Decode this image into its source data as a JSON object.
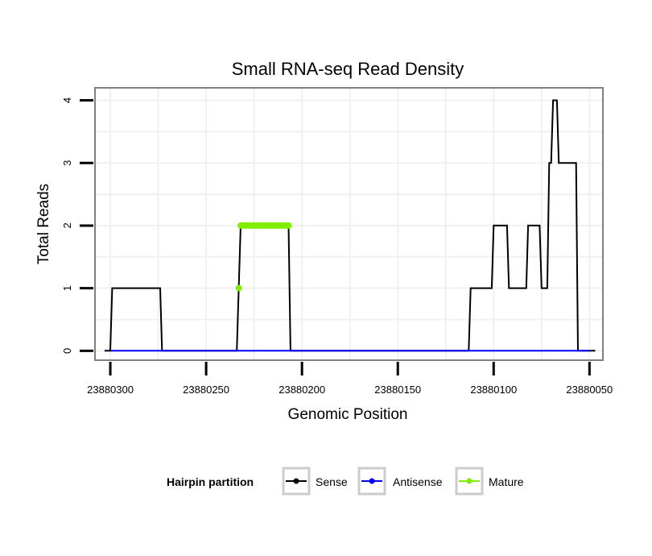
{
  "chart_data": {
    "type": "line",
    "title": "Small RNA-seq Read Density",
    "xlabel": "Genomic Position",
    "ylabel": "Total Reads",
    "xlim": [
      23880308,
      23880043
    ],
    "x_reversed": true,
    "ylim": [
      -0.15,
      4.2
    ],
    "x_ticks": [
      23880300,
      23880250,
      23880200,
      23880150,
      23880100,
      23880050
    ],
    "x_tick_labels": [
      "23880300",
      "23880250",
      "23880200",
      "23880150",
      "23880100",
      "23880050"
    ],
    "y_ticks": [
      0,
      1,
      2,
      3,
      4
    ],
    "y_tick_labels": [
      "0",
      "1",
      "2",
      "3",
      "4"
    ],
    "grid": true,
    "legend": {
      "title": "Hairpin partition",
      "placement": "bottom",
      "entries": [
        {
          "name": "Sense",
          "color": "#000000"
        },
        {
          "name": "Antisense",
          "color": "#0000ff"
        },
        {
          "name": "Mature",
          "color": "#80ee00"
        }
      ]
    },
    "series": [
      {
        "name": "Sense",
        "color": "#000000",
        "x": [
          23880303,
          23880300,
          23880299,
          23880274,
          23880273,
          23880234,
          23880232,
          23880207,
          23880206,
          23880196,
          23880195,
          23880113,
          23880112,
          23880101,
          23880100,
          23880093,
          23880092,
          23880083,
          23880082,
          23880076,
          23880075,
          23880072,
          23880071,
          23880070,
          23880069,
          23880067,
          23880066,
          23880057,
          23880056,
          23880051,
          23880050,
          23880047
        ],
        "y": [
          0,
          0,
          1,
          1,
          0,
          0,
          2,
          2,
          0,
          0,
          0,
          0,
          1,
          1,
          2,
          2,
          1,
          1,
          2,
          2,
          1,
          1,
          3,
          3,
          4,
          4,
          3,
          3,
          0,
          0,
          0,
          0
        ]
      },
      {
        "name": "Antisense",
        "color": "#0000ff",
        "x": [
          23880300,
          23880050
        ],
        "y": [
          0,
          0
        ]
      },
      {
        "name": "Mature",
        "color": "#80ee00",
        "x": [
          23880233,
          23880232,
          23880231,
          23880230,
          23880229,
          23880228,
          23880227,
          23880226,
          23880225,
          23880224,
          23880223,
          23880222,
          23880221,
          23880220,
          23880219,
          23880218,
          23880217,
          23880216,
          23880215,
          23880214,
          23880213,
          23880212,
          23880211,
          23880210,
          23880209,
          23880208,
          23880207
        ],
        "y": [
          1,
          2,
          2,
          2,
          2,
          2,
          2,
          2,
          2,
          2,
          2,
          2,
          2,
          2,
          2,
          2,
          2,
          2,
          2,
          2,
          2,
          2,
          2,
          2,
          2,
          2,
          2
        ]
      }
    ]
  }
}
